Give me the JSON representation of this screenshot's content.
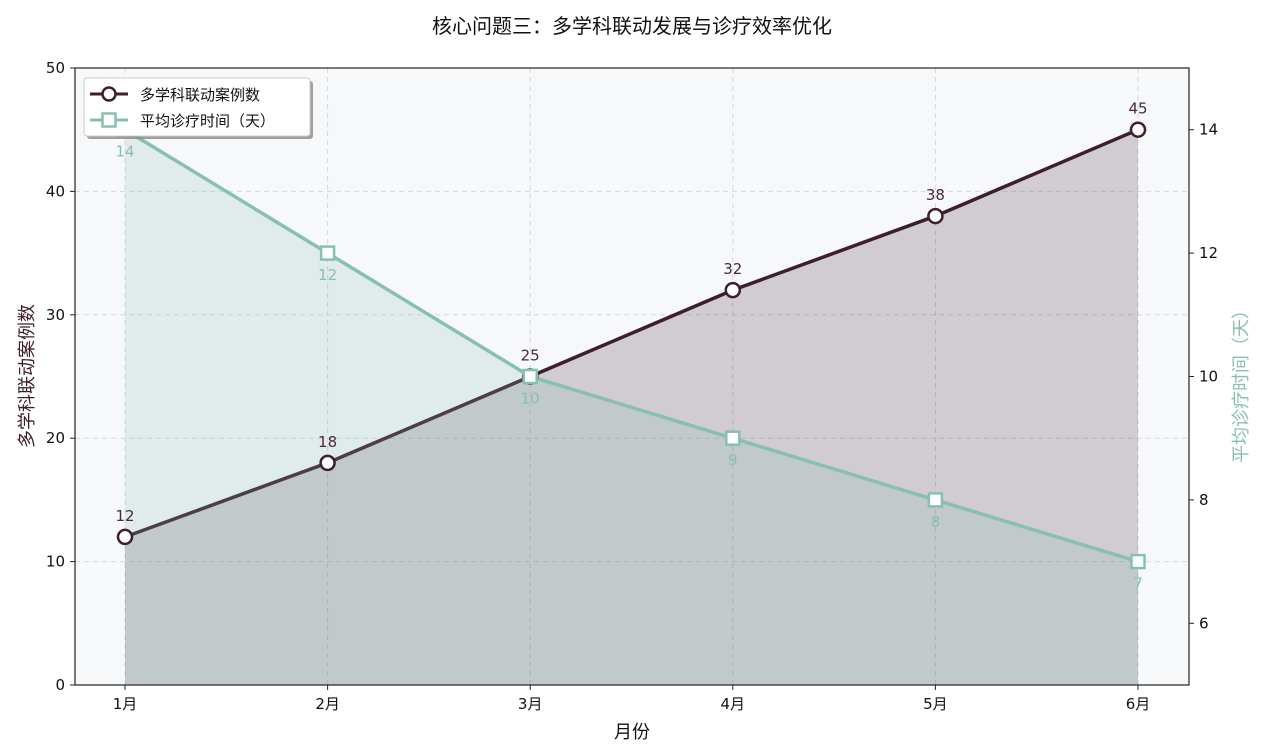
{
  "chart_data": {
    "type": "line",
    "title": "核心问题三：多学科联动发展与诊疗效率优化",
    "xlabel": "月份",
    "ylabel_left": "多学科联动案例数",
    "ylabel_right": "平均诊疗时间（天）",
    "categories": [
      "1月",
      "2月",
      "3月",
      "4月",
      "5月",
      "6月"
    ],
    "ylim_left": [
      0,
      50
    ],
    "yticks_left": [
      0,
      10,
      20,
      30,
      40,
      50
    ],
    "ylim_right": [
      5,
      15
    ],
    "yticks_right": [
      6,
      8,
      10,
      12,
      14
    ],
    "grid": true,
    "legend_position": "top-left",
    "series": [
      {
        "name": "多学科联动案例数",
        "axis": "left",
        "values": [
          12,
          18,
          25,
          32,
          38,
          45
        ],
        "color": "#3d1f2b",
        "marker": "circle",
        "filled_area": true
      },
      {
        "name": "平均诊疗时间（天）",
        "axis": "right",
        "values": [
          14,
          12,
          10,
          9,
          8,
          7
        ],
        "color": "#88c0b0",
        "marker": "square",
        "filled_area": true
      }
    ]
  }
}
